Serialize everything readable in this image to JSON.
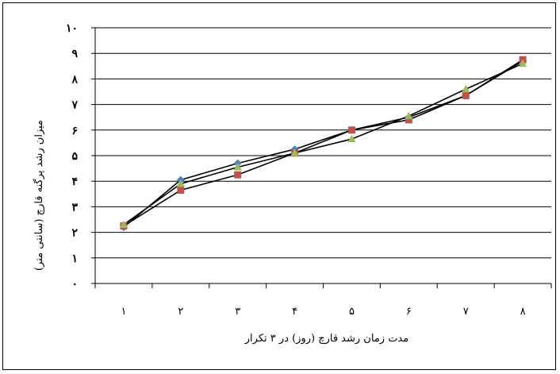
{
  "chart_data": {
    "type": "line",
    "title": "",
    "xlabel": "مدت زمان رشد قارچ (روز) در ۳ تکرار",
    "ylabel": "میزان رشد پرگنه قارچ (سانتی متر)",
    "categories": [
      "۱",
      "۲",
      "۳",
      "۴",
      "۵",
      "۶",
      "۷",
      "۸"
    ],
    "y_tick_labels": [
      "۰",
      "۱",
      "۲",
      "۳",
      "۴",
      "۵",
      "۶",
      "۷",
      "۸",
      "۹",
      "۱۰"
    ],
    "ylim": [
      0,
      10
    ],
    "grid": true,
    "legend": "none",
    "series": [
      {
        "color": "#4F81BD",
        "marker": "diamond",
        "values": [
          2.2,
          4.05,
          4.7,
          5.25,
          6.0,
          6.5,
          7.35,
          8.7
        ]
      },
      {
        "color": "#C0504D",
        "marker": "square",
        "values": [
          2.25,
          3.65,
          4.25,
          5.1,
          6.0,
          6.4,
          7.35,
          8.75
        ]
      },
      {
        "color": "#9BBB59",
        "marker": "triangle",
        "values": [
          2.3,
          3.9,
          4.55,
          5.1,
          5.65,
          6.55,
          7.6,
          8.6
        ]
      }
    ]
  }
}
